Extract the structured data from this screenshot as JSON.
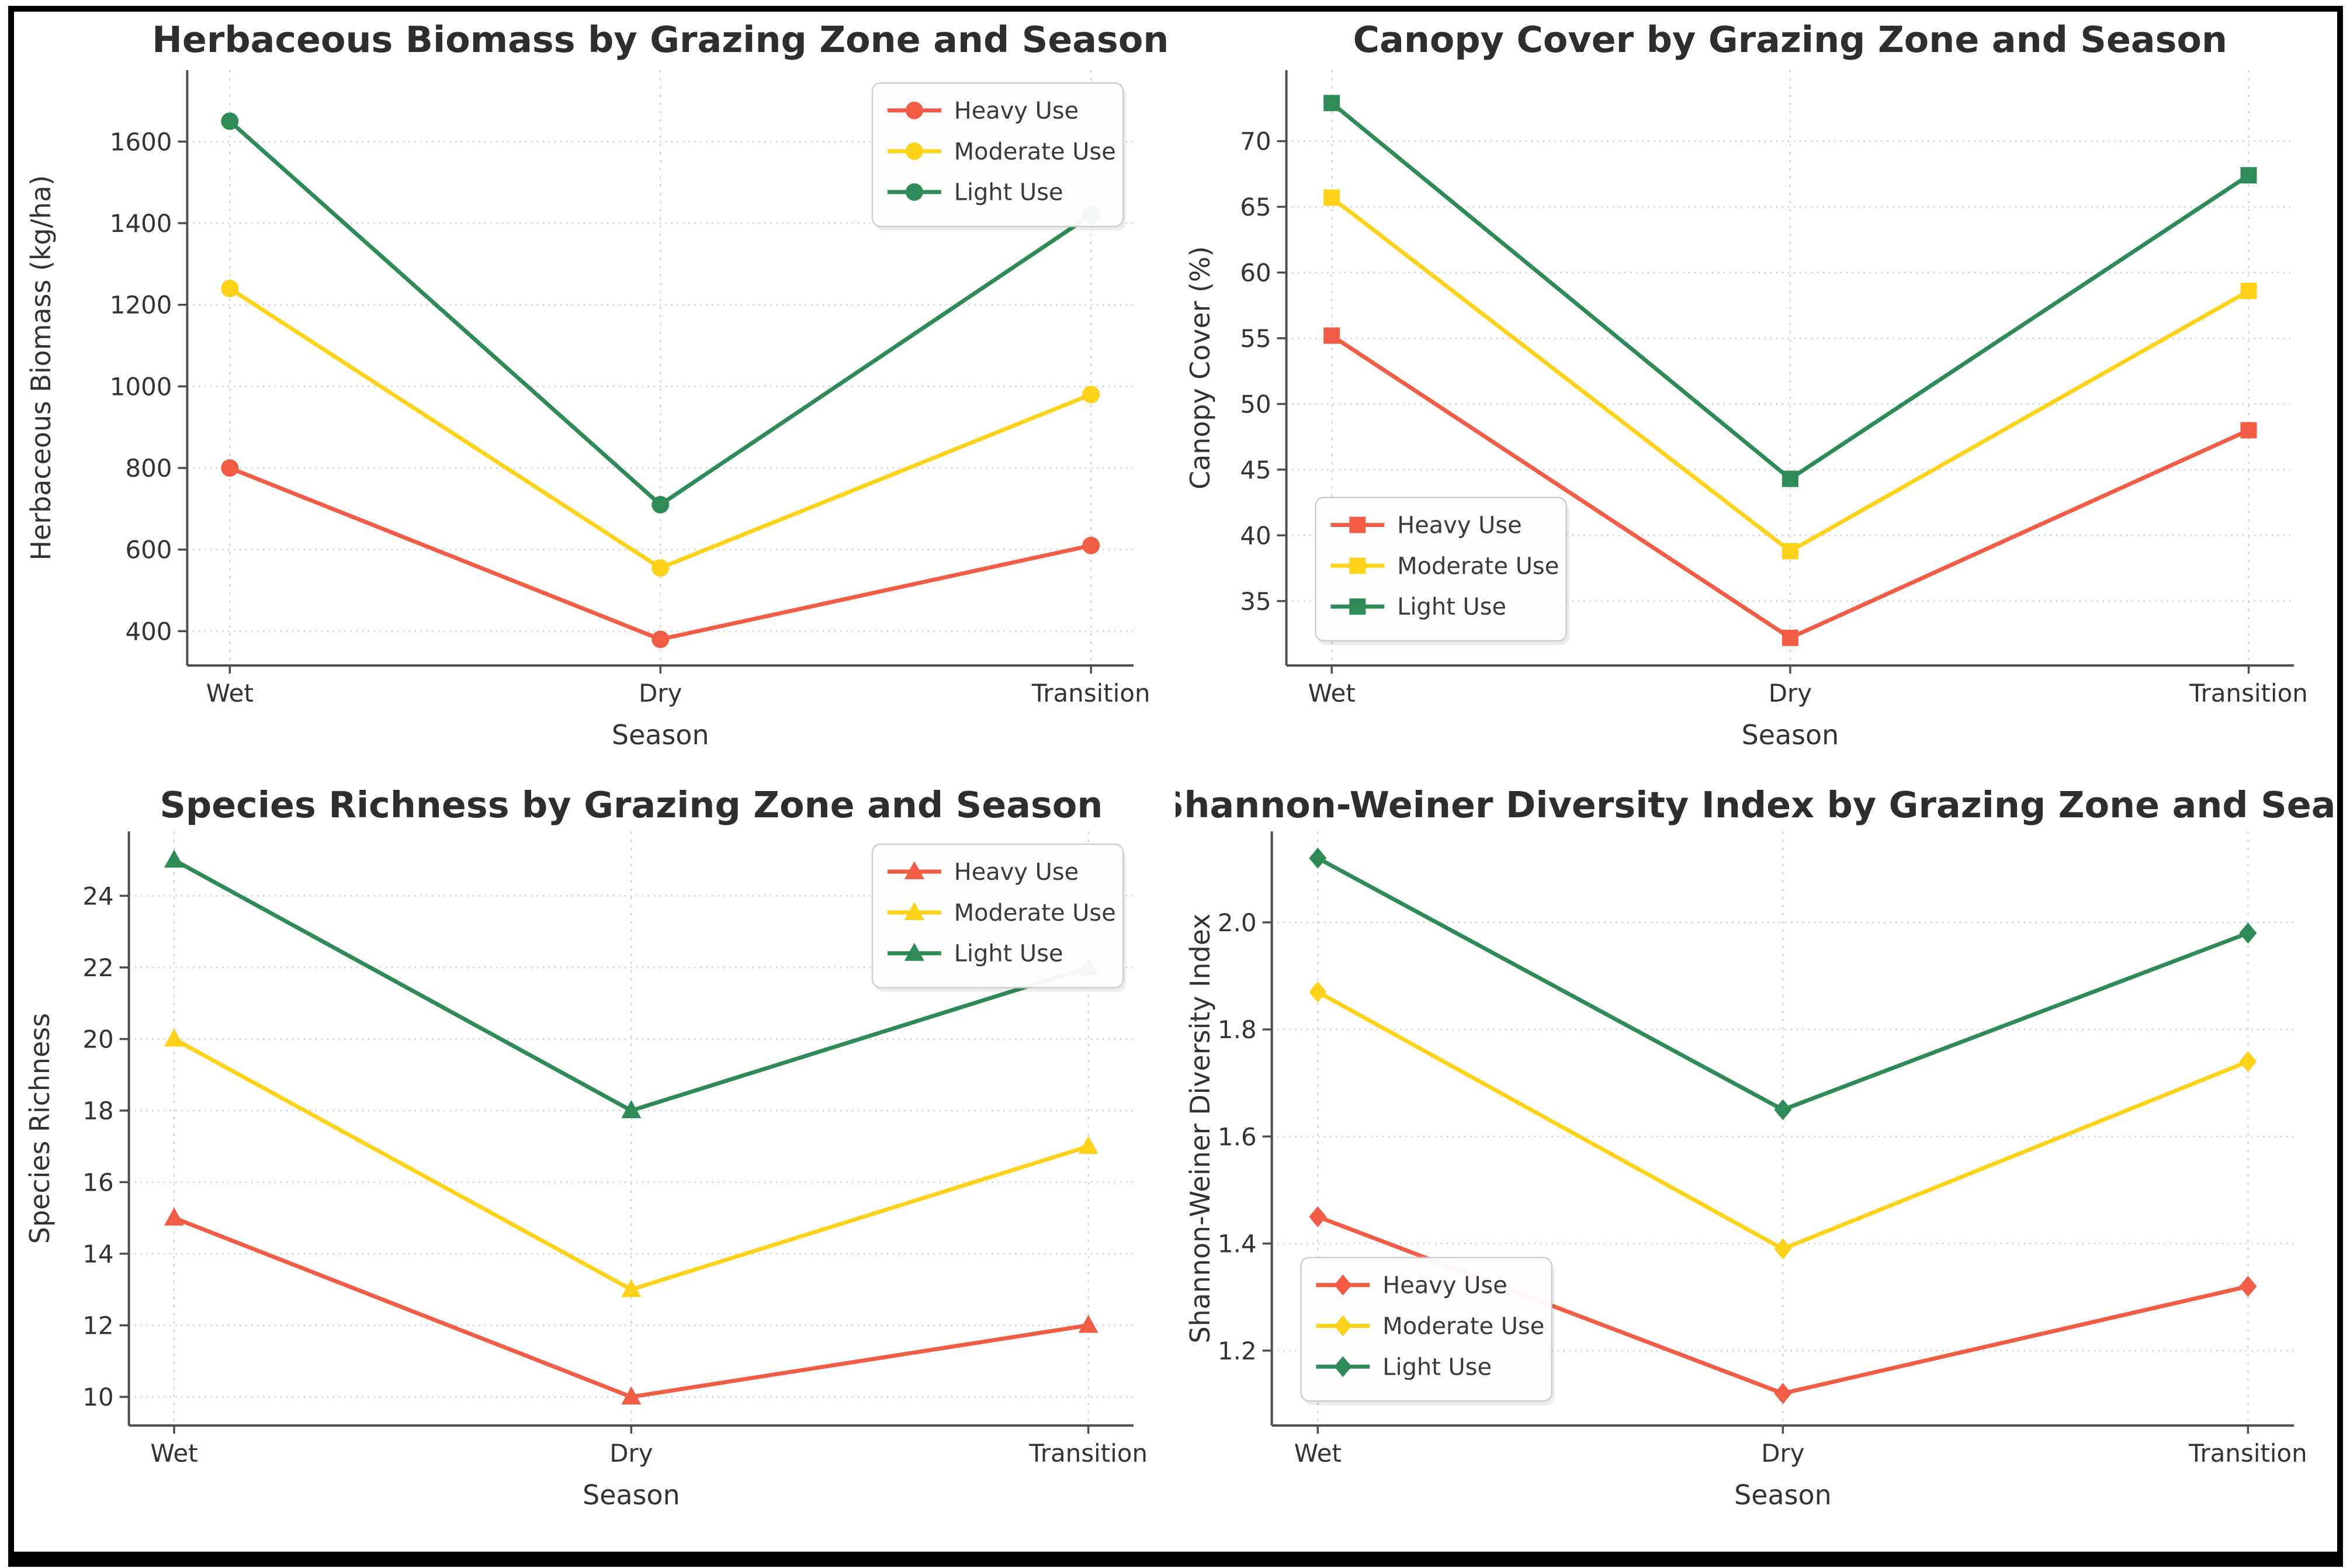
{
  "page": {
    "background": "#ffffff",
    "frame_color": "#000000"
  },
  "chart_data": [
    {
      "id": "herbaceous-biomass",
      "type": "line",
      "title": "Herbaceous Biomass by Grazing Zone and Season",
      "xlabel": "Season",
      "ylabel": "Herbaceous Biomass (kg/ha)",
      "categories": [
        "Wet",
        "Dry",
        "Transition"
      ],
      "marker": "circle",
      "legend_position": "upper-right",
      "grid": true,
      "ylim": [
        316,
        1775
      ],
      "yticks": [
        "400",
        "600",
        "800",
        "1000",
        "1200",
        "1400",
        "1600"
      ],
      "series": [
        {
          "name": "Heavy Use",
          "color": "#F25B44",
          "values": [
            800,
            380,
            610
          ]
        },
        {
          "name": "Moderate Use",
          "color": "#FFD21A",
          "values": [
            1240,
            555,
            980
          ]
        },
        {
          "name": "Light Use",
          "color": "#2E8B57",
          "values": [
            1650,
            710,
            1420
          ]
        }
      ]
    },
    {
      "id": "canopy-cover",
      "type": "line",
      "title": "Canopy Cover by Grazing Zone and Season",
      "xlabel": "Season",
      "ylabel": "Canopy Cover (%)",
      "categories": [
        "Wet",
        "Dry",
        "Transition"
      ],
      "marker": "square",
      "legend_position": "lower-left",
      "grid": true,
      "ylim": [
        30.1,
        75.4
      ],
      "yticks": [
        "35",
        "40",
        "45",
        "50",
        "55",
        "60",
        "65",
        "70"
      ],
      "series": [
        {
          "name": "Heavy Use",
          "color": "#F25B44",
          "values": [
            55.2,
            32.2,
            48.0
          ]
        },
        {
          "name": "Moderate Use",
          "color": "#FFD21A",
          "values": [
            65.7,
            38.8,
            58.6
          ]
        },
        {
          "name": "Light Use",
          "color": "#2E8B57",
          "values": [
            72.9,
            44.3,
            67.4
          ]
        }
      ]
    },
    {
      "id": "species-richness",
      "type": "line",
      "title": "Species Richness by Grazing Zone and Season",
      "xlabel": "Season",
      "ylabel": "Species Richness",
      "categories": [
        "Wet",
        "Dry",
        "Transition"
      ],
      "marker": "triangle",
      "legend_position": "upper-right",
      "grid": true,
      "ylim": [
        9.2,
        25.8
      ],
      "yticks": [
        "10",
        "12",
        "14",
        "16",
        "18",
        "20",
        "22",
        "24"
      ],
      "series": [
        {
          "name": "Heavy Use",
          "color": "#F25B44",
          "values": [
            15,
            10,
            12
          ]
        },
        {
          "name": "Moderate Use",
          "color": "#FFD21A",
          "values": [
            20,
            13,
            17
          ]
        },
        {
          "name": "Light Use",
          "color": "#2E8B57",
          "values": [
            25,
            18,
            22
          ]
        }
      ]
    },
    {
      "id": "shannon-weiner",
      "type": "line",
      "title": "Shannon-Weiner Diversity Index by Grazing Zone and Season",
      "xlabel": "Season",
      "ylabel": "Shannon-Weiner Diversity Index",
      "categories": [
        "Wet",
        "Dry",
        "Transition"
      ],
      "marker": "diamond",
      "legend_position": "lower-left",
      "grid": true,
      "ylim": [
        1.06,
        2.17
      ],
      "yticks": [
        "1.2",
        "1.4",
        "1.6",
        "1.8",
        "2.0"
      ],
      "series": [
        {
          "name": "Heavy Use",
          "color": "#F25B44",
          "values": [
            1.45,
            1.12,
            1.32
          ]
        },
        {
          "name": "Moderate Use",
          "color": "#FFD21A",
          "values": [
            1.87,
            1.39,
            1.74
          ]
        },
        {
          "name": "Light Use",
          "color": "#2E8B57",
          "values": [
            2.12,
            1.65,
            1.98
          ]
        }
      ]
    }
  ]
}
